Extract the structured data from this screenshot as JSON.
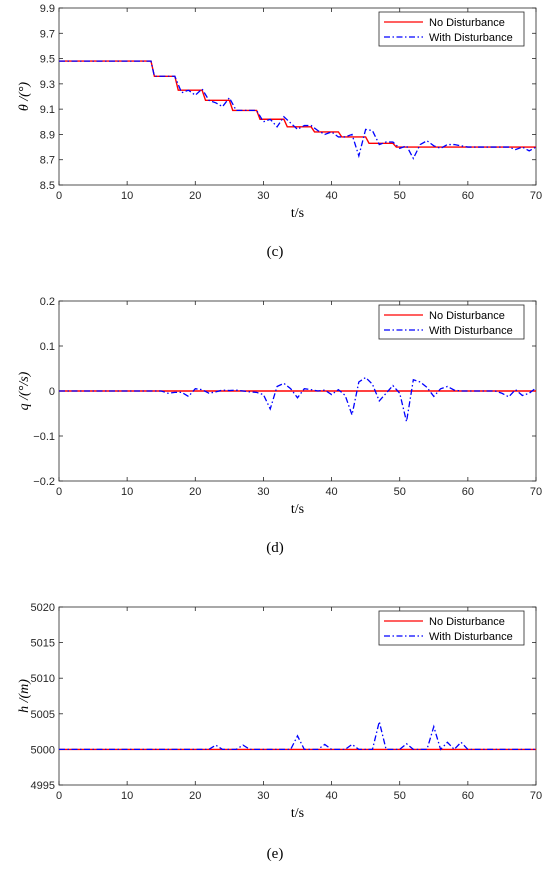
{
  "legend": [
    "No Disturbance",
    "With Disturbance"
  ],
  "colors": {
    "no_disturbance": "#ff0000",
    "with_disturbance": "#0000ff",
    "axis": "#262626"
  },
  "chart_data": [
    {
      "type": "line",
      "caption": "(c)",
      "xlabel": "t/s",
      "ylabel": "θ /(°)",
      "xlim": [
        0,
        70
      ],
      "ylim": [
        8.5,
        9.9
      ],
      "xticks": [
        0,
        10,
        20,
        30,
        40,
        50,
        60,
        70
      ],
      "yticks": [
        8.5,
        8.7,
        8.9,
        9.1,
        9.3,
        9.5,
        9.7,
        9.9
      ],
      "ytick_labels": [
        "8.5",
        "8.7",
        "8.9",
        "9.1",
        "9.3",
        "9.5",
        "9.7",
        "9.9"
      ],
      "legend_position": "top-right",
      "series": [
        {
          "name": "No Disturbance",
          "style": "solid",
          "x": [
            0,
            13.5,
            14,
            17,
            17.5,
            21,
            21.5,
            25,
            25.5,
            29,
            29.5,
            33,
            33.5,
            37,
            37.5,
            41,
            41.5,
            45,
            45.5,
            49,
            49.5,
            53,
            53.5,
            70
          ],
          "y": [
            9.48,
            9.48,
            9.36,
            9.36,
            9.25,
            9.25,
            9.17,
            9.17,
            9.09,
            9.09,
            9.02,
            9.02,
            8.96,
            8.96,
            8.92,
            8.92,
            8.88,
            8.88,
            8.83,
            8.83,
            8.8,
            8.8,
            8.8,
            8.8
          ]
        },
        {
          "name": "With Disturbance",
          "style": "dashdot",
          "x": [
            0,
            13.5,
            14,
            17,
            18,
            19,
            20,
            21,
            22,
            23,
            24,
            25,
            26,
            29,
            30,
            31,
            32,
            33,
            34,
            35,
            36,
            37,
            38,
            39,
            40,
            41,
            42,
            43,
            44,
            45,
            46,
            47,
            48,
            49,
            50,
            51,
            52,
            53,
            54,
            55,
            56,
            57,
            58,
            59,
            60,
            65,
            66,
            67,
            68,
            69,
            70
          ],
          "y": [
            9.48,
            9.48,
            9.36,
            9.36,
            9.23,
            9.25,
            9.21,
            9.26,
            9.17,
            9.15,
            9.12,
            9.19,
            9.09,
            9.09,
            9.0,
            9.02,
            8.96,
            9.04,
            8.99,
            8.94,
            8.97,
            8.97,
            8.93,
            8.9,
            8.92,
            8.88,
            8.88,
            8.9,
            8.73,
            8.94,
            8.93,
            8.82,
            8.84,
            8.84,
            8.79,
            8.81,
            8.71,
            8.82,
            8.85,
            8.81,
            8.79,
            8.82,
            8.82,
            8.81,
            8.8,
            8.8,
            8.8,
            8.78,
            8.8,
            8.77,
            8.8
          ]
        }
      ]
    },
    {
      "type": "line",
      "caption": "(d)",
      "xlabel": "t/s",
      "ylabel": "q /(°/s)",
      "xlim": [
        0,
        70
      ],
      "ylim": [
        -0.2,
        0.2
      ],
      "xticks": [
        0,
        10,
        20,
        30,
        40,
        50,
        60,
        70
      ],
      "yticks": [
        -0.2,
        -0.1,
        0,
        0.1,
        0.2
      ],
      "ytick_labels": [
        "−0.2",
        "−0.1",
        "0",
        "0.1",
        "0.2"
      ],
      "legend_position": "top-right",
      "series": [
        {
          "name": "No Disturbance",
          "style": "solid",
          "x": [
            0,
            70
          ],
          "y": [
            0,
            0
          ]
        },
        {
          "name": "With Disturbance",
          "style": "dashdot",
          "x": [
            0,
            15,
            16,
            17,
            18,
            19,
            20,
            21,
            22,
            23,
            24,
            25,
            26,
            27,
            28,
            29,
            30,
            31,
            32,
            33,
            34,
            35,
            36,
            37,
            38,
            39,
            40,
            41,
            42,
            43,
            44,
            45,
            46,
            47,
            48,
            49,
            50,
            51,
            52,
            53,
            54,
            55,
            56,
            57,
            58,
            59,
            60,
            64,
            65,
            66,
            67,
            68,
            69,
            70
          ],
          "y": [
            0,
            0,
            -0.005,
            -0.003,
            -0.003,
            -0.012,
            0.005,
            0.003,
            -0.005,
            -0.002,
            0.002,
            0.001,
            0.002,
            0,
            -0.002,
            -0.003,
            -0.008,
            -0.04,
            0.01,
            0.017,
            0.005,
            -0.015,
            0.005,
            0.003,
            0,
            0.002,
            -0.008,
            0.003,
            -0.01,
            -0.053,
            0.02,
            0.03,
            0.015,
            -0.022,
            -0.005,
            0.012,
            -0.005,
            -0.068,
            0.025,
            0.02,
            0.008,
            -0.012,
            0.005,
            0.01,
            0.002,
            0,
            0,
            0,
            -0.005,
            -0.013,
            0.003,
            -0.01,
            -0.005,
            0.007
          ]
        }
      ]
    },
    {
      "type": "line",
      "caption": "(e)",
      "xlabel": "t/s",
      "ylabel": "h /(m)",
      "xlim": [
        0,
        70
      ],
      "ylim": [
        4995,
        5020
      ],
      "xticks": [
        0,
        10,
        20,
        30,
        40,
        50,
        60,
        70
      ],
      "yticks": [
        4995,
        5000,
        5005,
        5010,
        5015,
        5020
      ],
      "ytick_labels": [
        "4995",
        "5000",
        "5005",
        "5010",
        "5015",
        "5020"
      ],
      "legend_position": "top-right",
      "series": [
        {
          "name": "No Disturbance",
          "style": "solid",
          "x": [
            0,
            70
          ],
          "y": [
            5000,
            5000
          ]
        },
        {
          "name": "With Disturbance",
          "style": "dashdot",
          "x": [
            0,
            22,
            23,
            24,
            26,
            27,
            28,
            34,
            35,
            36,
            38,
            39,
            40,
            42,
            43,
            44,
            46,
            47,
            48,
            50,
            51,
            52,
            54,
            55,
            56,
            57,
            58,
            59,
            60,
            70
          ],
          "y": [
            5000,
            5000,
            5000.6,
            5000,
            5000,
            5000.6,
            5000,
            5000,
            5001.9,
            5000,
            5000,
            5000.7,
            5000,
            5000,
            5000.7,
            5000,
            5000,
            5003.9,
            5000,
            5000,
            5000.8,
            5000,
            5000,
            5003.2,
            5000,
            5001.0,
            5000,
            5001.0,
            5000,
            5000
          ]
        }
      ]
    }
  ]
}
